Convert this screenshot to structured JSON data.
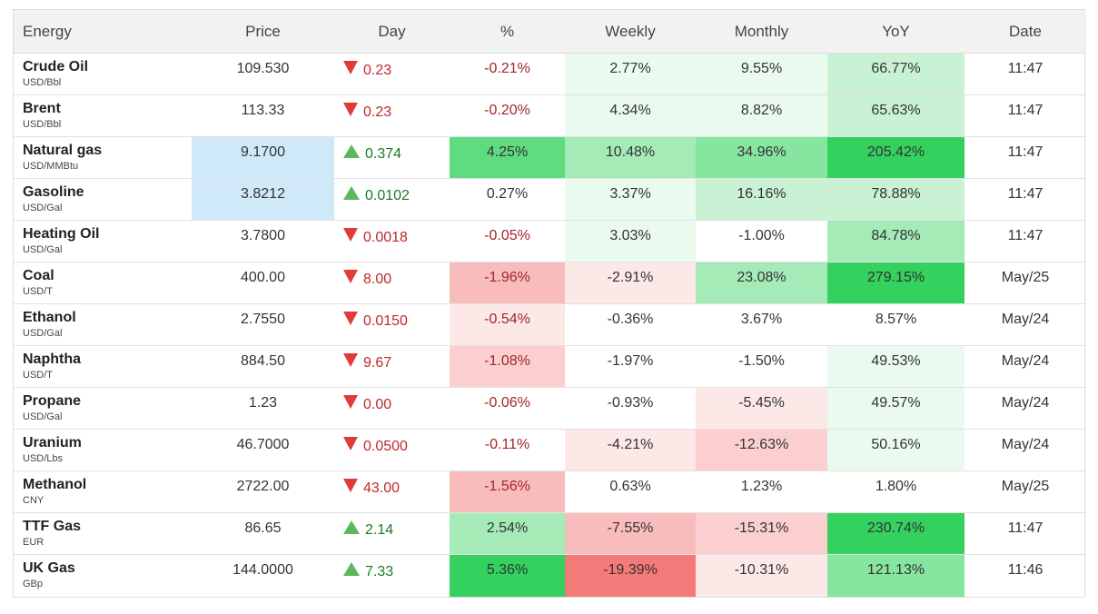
{
  "headers": [
    "Energy",
    "Price",
    "Day",
    "%",
    "Weekly",
    "Monthly",
    "YoY",
    "Date"
  ],
  "colors": {
    "highlight_price": "#cfe9f8",
    "g1": "#eafaee",
    "g2": "#c8f2d3",
    "g3": "#a4ebb8",
    "g4": "#86e59f",
    "g5": "#5fdb80",
    "g6": "#34d15f",
    "r1": "#fde8e8",
    "r2": "#fbcfcf",
    "r3": "#f9bcbc",
    "r4": "#f47a7a"
  },
  "rows": [
    {
      "name": "Crude Oil",
      "unit": "USD/Bbl",
      "price": "109.530",
      "price_hl": false,
      "dir": "down",
      "day": "0.23",
      "pct": "-0.21%",
      "pct_bg": "",
      "weekly": "2.77%",
      "weekly_bg": "g1",
      "monthly": "9.55%",
      "monthly_bg": "g1",
      "yoy": "66.77%",
      "yoy_bg": "g2",
      "date": "11:47"
    },
    {
      "name": "Brent",
      "unit": "USD/Bbl",
      "price": "113.33",
      "price_hl": false,
      "dir": "down",
      "day": "0.23",
      "pct": "-0.20%",
      "pct_bg": "",
      "weekly": "4.34%",
      "weekly_bg": "g1",
      "monthly": "8.82%",
      "monthly_bg": "g1",
      "yoy": "65.63%",
      "yoy_bg": "g2",
      "date": "11:47"
    },
    {
      "name": "Natural gas",
      "unit": "USD/MMBtu",
      "price": "9.1700",
      "price_hl": true,
      "dir": "up",
      "day": "0.374",
      "pct": "4.25%",
      "pct_bg": "g5",
      "weekly": "10.48%",
      "weekly_bg": "g3",
      "monthly": "34.96%",
      "monthly_bg": "g4",
      "yoy": "205.42%",
      "yoy_bg": "g6",
      "date": "11:47"
    },
    {
      "name": "Gasoline",
      "unit": "USD/Gal",
      "price": "3.8212",
      "price_hl": true,
      "dir": "up",
      "day": "0.0102",
      "pct": "0.27%",
      "pct_bg": "",
      "weekly": "3.37%",
      "weekly_bg": "g1",
      "monthly": "16.16%",
      "monthly_bg": "g2",
      "yoy": "78.88%",
      "yoy_bg": "g2",
      "date": "11:47"
    },
    {
      "name": "Heating Oil",
      "unit": "USD/Gal",
      "price": "3.7800",
      "price_hl": false,
      "dir": "down",
      "day": "0.0018",
      "pct": "-0.05%",
      "pct_bg": "",
      "weekly": "3.03%",
      "weekly_bg": "g1",
      "monthly": "-1.00%",
      "monthly_bg": "",
      "yoy": "84.78%",
      "yoy_bg": "g3",
      "date": "11:47"
    },
    {
      "name": "Coal",
      "unit": "USD/T",
      "price": "400.00",
      "price_hl": false,
      "dir": "down",
      "day": "8.00",
      "pct": "-1.96%",
      "pct_bg": "r3",
      "weekly": "-2.91%",
      "weekly_bg": "r1",
      "monthly": "23.08%",
      "monthly_bg": "g3",
      "yoy": "279.15%",
      "yoy_bg": "g6",
      "date": "May/25"
    },
    {
      "name": "Ethanol",
      "unit": "USD/Gal",
      "price": "2.7550",
      "price_hl": false,
      "dir": "down",
      "day": "0.0150",
      "pct": "-0.54%",
      "pct_bg": "r1",
      "weekly": "-0.36%",
      "weekly_bg": "",
      "monthly": "3.67%",
      "monthly_bg": "",
      "yoy": "8.57%",
      "yoy_bg": "",
      "date": "May/24"
    },
    {
      "name": "Naphtha",
      "unit": "USD/T",
      "price": "884.50",
      "price_hl": false,
      "dir": "down",
      "day": "9.67",
      "pct": "-1.08%",
      "pct_bg": "r2",
      "weekly": "-1.97%",
      "weekly_bg": "",
      "monthly": "-1.50%",
      "monthly_bg": "",
      "yoy": "49.53%",
      "yoy_bg": "g1",
      "date": "May/24"
    },
    {
      "name": "Propane",
      "unit": "USD/Gal",
      "price": "1.23",
      "price_hl": false,
      "dir": "down",
      "day": "0.00",
      "pct": "-0.06%",
      "pct_bg": "",
      "weekly": "-0.93%",
      "weekly_bg": "",
      "monthly": "-5.45%",
      "monthly_bg": "r1",
      "yoy": "49.57%",
      "yoy_bg": "g1",
      "date": "May/24"
    },
    {
      "name": "Uranium",
      "unit": "USD/Lbs",
      "price": "46.7000",
      "price_hl": false,
      "dir": "down",
      "day": "0.0500",
      "pct": "-0.11%",
      "pct_bg": "",
      "weekly": "-4.21%",
      "weekly_bg": "r1",
      "monthly": "-12.63%",
      "monthly_bg": "r2",
      "yoy": "50.16%",
      "yoy_bg": "g1",
      "date": "May/24"
    },
    {
      "name": "Methanol",
      "unit": "CNY",
      "price": "2722.00",
      "price_hl": false,
      "dir": "down",
      "day": "43.00",
      "pct": "-1.56%",
      "pct_bg": "r3",
      "weekly": "0.63%",
      "weekly_bg": "",
      "monthly": "1.23%",
      "monthly_bg": "",
      "yoy": "1.80%",
      "yoy_bg": "",
      "date": "May/25"
    },
    {
      "name": "TTF Gas",
      "unit": "EUR",
      "price": "86.65",
      "price_hl": false,
      "dir": "up",
      "day": "2.14",
      "pct": "2.54%",
      "pct_bg": "g3",
      "weekly": "-7.55%",
      "weekly_bg": "r3",
      "monthly": "-15.31%",
      "monthly_bg": "r2",
      "yoy": "230.74%",
      "yoy_bg": "g6",
      "date": "11:47"
    },
    {
      "name": "UK Gas",
      "unit": "GBp",
      "price": "144.0000",
      "price_hl": false,
      "dir": "up",
      "day": "7.33",
      "pct": "5.36%",
      "pct_bg": "g6",
      "weekly": "-19.39%",
      "weekly_bg": "r4",
      "monthly": "-10.31%",
      "monthly_bg": "r1",
      "yoy": "121.13%",
      "yoy_bg": "g4",
      "date": "11:46"
    }
  ]
}
